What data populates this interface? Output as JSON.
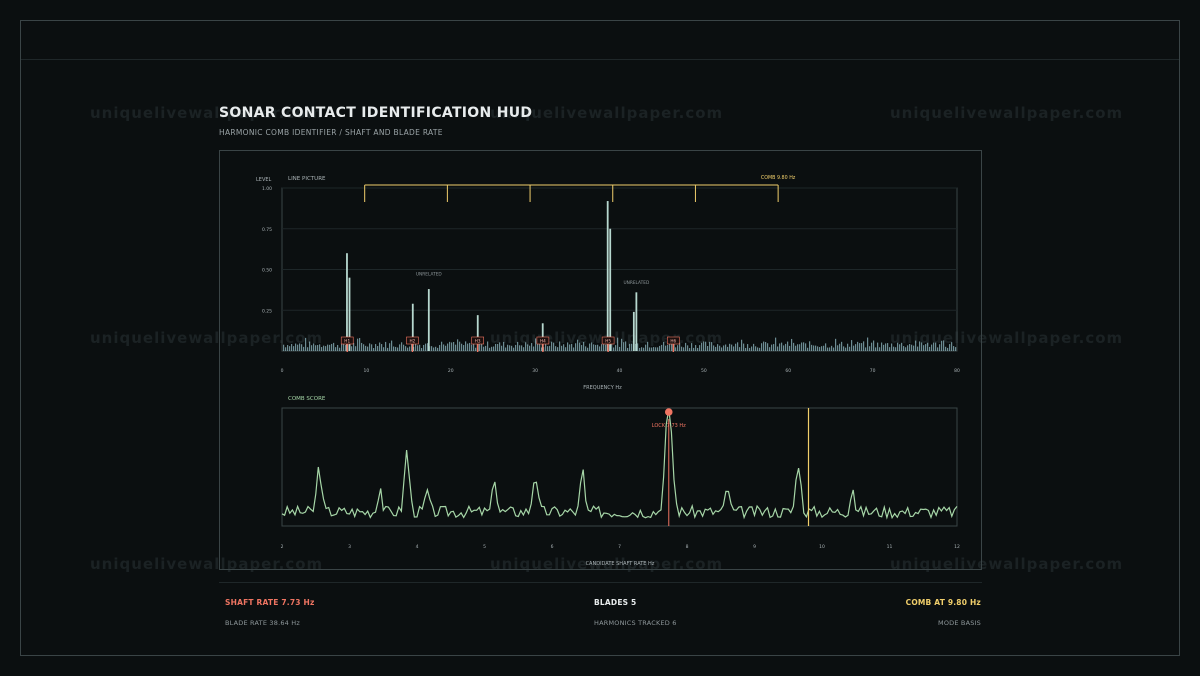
{
  "header": {
    "title": "SONAR CONTACT IDENTIFICATION HUD",
    "subtitle": "HARMONIC COMB IDENTIFIER / SHAFT AND BLADE RATE"
  },
  "watermark": "uniquelivewallpaper.com",
  "colors": {
    "background": "#0b0f10",
    "line": "#8fb7bf",
    "harmonic": "#a6d6a7",
    "comb": "#f1cf6b",
    "lock": "#f07562",
    "text": "#c9cfd1"
  },
  "footer": {
    "left_main": "SHAFT RATE 7.73 Hz",
    "left_sub": "BLADE RATE 38.64 Hz",
    "center_main": "BLADES 5",
    "center_sub": "HARMONICS TRACKED 6",
    "right_main": "COMB AT 9.80 Hz",
    "right_sub": "MODE BASIS"
  },
  "chart_data": [
    {
      "type": "bar",
      "title": "LINE PICTURE",
      "xlabel": "FREQUENCY Hz",
      "ylabel": "LEVEL",
      "xlim": [
        0,
        80
      ],
      "ylim": [
        0,
        1.0
      ],
      "xticks": [
        "0",
        "10",
        "20",
        "30",
        "40",
        "50",
        "60",
        "70",
        "80"
      ],
      "yticks": [
        "1.00",
        "0.75",
        "0.50",
        "0.25"
      ],
      "grid": true,
      "noise_floor": 0.06,
      "lines": [
        {
          "x": 7.7,
          "y": 0.6
        },
        {
          "x": 8.0,
          "y": 0.45
        },
        {
          "x": 15.5,
          "y": 0.29
        },
        {
          "x": 17.4,
          "y": 0.38
        },
        {
          "x": 23.2,
          "y": 0.22
        },
        {
          "x": 30.9,
          "y": 0.17
        },
        {
          "x": 38.6,
          "y": 0.92
        },
        {
          "x": 38.9,
          "y": 0.75
        },
        {
          "x": 42.0,
          "y": 0.36
        },
        {
          "x": 41.7,
          "y": 0.24
        },
        {
          "x": 46.4,
          "y": 0.05
        }
      ],
      "harmonic_markers": [
        {
          "label": "H1",
          "x": 7.73
        },
        {
          "label": "H2",
          "x": 15.46
        },
        {
          "label": "H3",
          "x": 23.19
        },
        {
          "label": "H4",
          "x": 30.92
        },
        {
          "label": "H5",
          "x": 38.65
        },
        {
          "label": "H6",
          "x": 46.38
        }
      ],
      "annotations": [
        {
          "text": "UNRELATED",
          "x": 17.4,
          "y": 0.45
        },
        {
          "text": "UNRELATED",
          "x": 42.0,
          "y": 0.4
        }
      ],
      "comb": {
        "label": "COMB 9.80 Hz",
        "teeth": [
          9.8,
          19.6,
          29.4,
          39.2,
          49.0,
          58.8
        ]
      }
    },
    {
      "type": "line",
      "title": "COMB SCORE",
      "xlabel": "CANDIDATE SHAFT RATE Hz",
      "xlim": [
        2,
        12
      ],
      "ylim": [
        0,
        1
      ],
      "xticks": [
        "2",
        "3",
        "4",
        "5",
        "6",
        "7",
        "8",
        "9",
        "10",
        "11",
        "12"
      ],
      "lock": {
        "label": "LOCK 7.73 Hz",
        "x": 7.73
      },
      "comb_line": {
        "x": 9.8
      },
      "peaks": [
        {
          "x": 2.55,
          "h": 0.38,
          "w": 0.05
        },
        {
          "x": 3.45,
          "h": 0.22,
          "w": 0.04
        },
        {
          "x": 3.85,
          "h": 0.52,
          "w": 0.05
        },
        {
          "x": 4.15,
          "h": 0.18,
          "w": 0.04
        },
        {
          "x": 5.15,
          "h": 0.3,
          "w": 0.04
        },
        {
          "x": 5.75,
          "h": 0.32,
          "w": 0.05
        },
        {
          "x": 6.45,
          "h": 0.36,
          "w": 0.04
        },
        {
          "x": 7.73,
          "h": 0.95,
          "w": 0.07
        },
        {
          "x": 8.6,
          "h": 0.22,
          "w": 0.04
        },
        {
          "x": 9.65,
          "h": 0.42,
          "w": 0.05
        },
        {
          "x": 10.45,
          "h": 0.22,
          "w": 0.04
        }
      ],
      "baseline": 0.12
    }
  ]
}
